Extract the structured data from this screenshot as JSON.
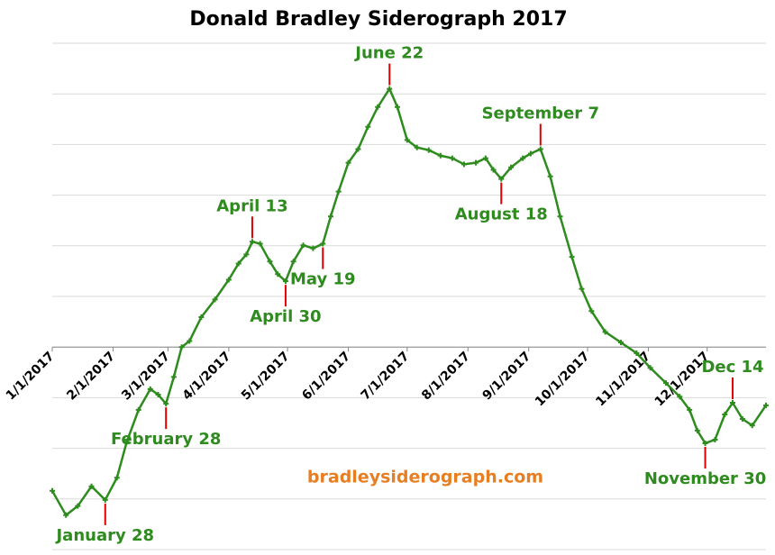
{
  "chart_data": {
    "type": "line",
    "title": "Donald Bradley Siderograph 2017",
    "watermark": "bradleysiderograph.com",
    "x": [
      "2017-01-01",
      "2017-01-08",
      "2017-01-14",
      "2017-01-21",
      "2017-01-28",
      "2017-02-03",
      "2017-02-08",
      "2017-02-14",
      "2017-02-20",
      "2017-02-24",
      "2017-02-28",
      "2017-03-04",
      "2017-03-08",
      "2017-03-12",
      "2017-03-18",
      "2017-03-25",
      "2017-04-01",
      "2017-04-06",
      "2017-04-10",
      "2017-04-13",
      "2017-04-17",
      "2017-04-22",
      "2017-04-26",
      "2017-04-30",
      "2017-05-04",
      "2017-05-09",
      "2017-05-14",
      "2017-05-19",
      "2017-05-23",
      "2017-05-27",
      "2017-06-01",
      "2017-06-06",
      "2017-06-11",
      "2017-06-16",
      "2017-06-22",
      "2017-06-26",
      "2017-07-01",
      "2017-07-06",
      "2017-07-12",
      "2017-07-18",
      "2017-07-24",
      "2017-07-30",
      "2017-08-05",
      "2017-08-10",
      "2017-08-14",
      "2017-08-18",
      "2017-08-23",
      "2017-08-29",
      "2017-09-02",
      "2017-09-07",
      "2017-09-12",
      "2017-09-17",
      "2017-09-23",
      "2017-09-28",
      "2017-10-03",
      "2017-10-10",
      "2017-10-18",
      "2017-10-26",
      "2017-11-02",
      "2017-11-10",
      "2017-11-17",
      "2017-11-22",
      "2017-11-26",
      "2017-11-30",
      "2017-12-05",
      "2017-12-10",
      "2017-12-14",
      "2017-12-19",
      "2017-12-24",
      "2017-12-31"
    ],
    "series": [
      {
        "name": "Siderograph",
        "color": "#2e8b1e",
        "values": [
          -28.4,
          -33.2,
          -31.4,
          -27.5,
          -30.2,
          -25.8,
          -18.7,
          -12.4,
          -8.3,
          -9.4,
          -11.2,
          -5.9,
          0,
          1.2,
          5.9,
          9.4,
          13.3,
          16.5,
          18.3,
          20.8,
          20.4,
          16.9,
          14.4,
          13,
          16.9,
          20.1,
          19.5,
          20.4,
          25.8,
          30.7,
          36.4,
          39.1,
          43.5,
          47.4,
          51,
          47.4,
          40.9,
          39.4,
          38.9,
          37.8,
          37.3,
          36.1,
          36.4,
          37.3,
          35,
          33.2,
          35.5,
          37.3,
          38.2,
          39.1,
          33.7,
          25.8,
          17.8,
          11.5,
          7.1,
          3,
          0.9,
          -1.2,
          -4.1,
          -7.1,
          -9.8,
          -12.4,
          -16.5,
          -19,
          -18.3,
          -13.3,
          -11,
          -14.2,
          -15.5,
          -11.5
        ]
      }
    ],
    "xlim": [
      "2017-01-01",
      "2017-12-31"
    ],
    "xticks": [
      {
        "value": "2017-01-01",
        "label": "1/1/2017"
      },
      {
        "value": "2017-02-01",
        "label": "2/1/2017"
      },
      {
        "value": "2017-03-01",
        "label": "3/1/2017"
      },
      {
        "value": "2017-04-01",
        "label": "4/1/2017"
      },
      {
        "value": "2017-05-01",
        "label": "5/1/2017"
      },
      {
        "value": "2017-06-01",
        "label": "6/1/2017"
      },
      {
        "value": "2017-07-01",
        "label": "7/1/2017"
      },
      {
        "value": "2017-08-01",
        "label": "8/1/2017"
      },
      {
        "value": "2017-09-01",
        "label": "9/1/2017"
      },
      {
        "value": "2017-10-01",
        "label": "10/1/2017"
      },
      {
        "value": "2017-11-01",
        "label": "11/1/2017"
      },
      {
        "value": "2017-12-01",
        "label": "12/1/2017"
      }
    ],
    "ylim": [
      -40,
      60
    ],
    "yticks": [
      -40,
      -30,
      -20,
      -10,
      0,
      10,
      20,
      30,
      40,
      50,
      60
    ],
    "grid": true,
    "annotations": [
      {
        "x": "2017-01-28",
        "label": "January 28",
        "position": "below"
      },
      {
        "x": "2017-02-28",
        "label": "February 28",
        "position": "below"
      },
      {
        "x": "2017-04-13",
        "label": "April 13",
        "position": "above"
      },
      {
        "x": "2017-04-30",
        "label": "April 30",
        "position": "below"
      },
      {
        "x": "2017-05-19",
        "label": "May 19",
        "position": "below"
      },
      {
        "x": "2017-06-22",
        "label": "June 22",
        "position": "above"
      },
      {
        "x": "2017-08-18",
        "label": "August 18",
        "position": "below"
      },
      {
        "x": "2017-09-07",
        "label": "September 7",
        "position": "above"
      },
      {
        "x": "2017-11-30",
        "label": "November 30",
        "position": "below"
      },
      {
        "x": "2017-12-14",
        "label": "Dec 14",
        "position": "above"
      }
    ]
  }
}
